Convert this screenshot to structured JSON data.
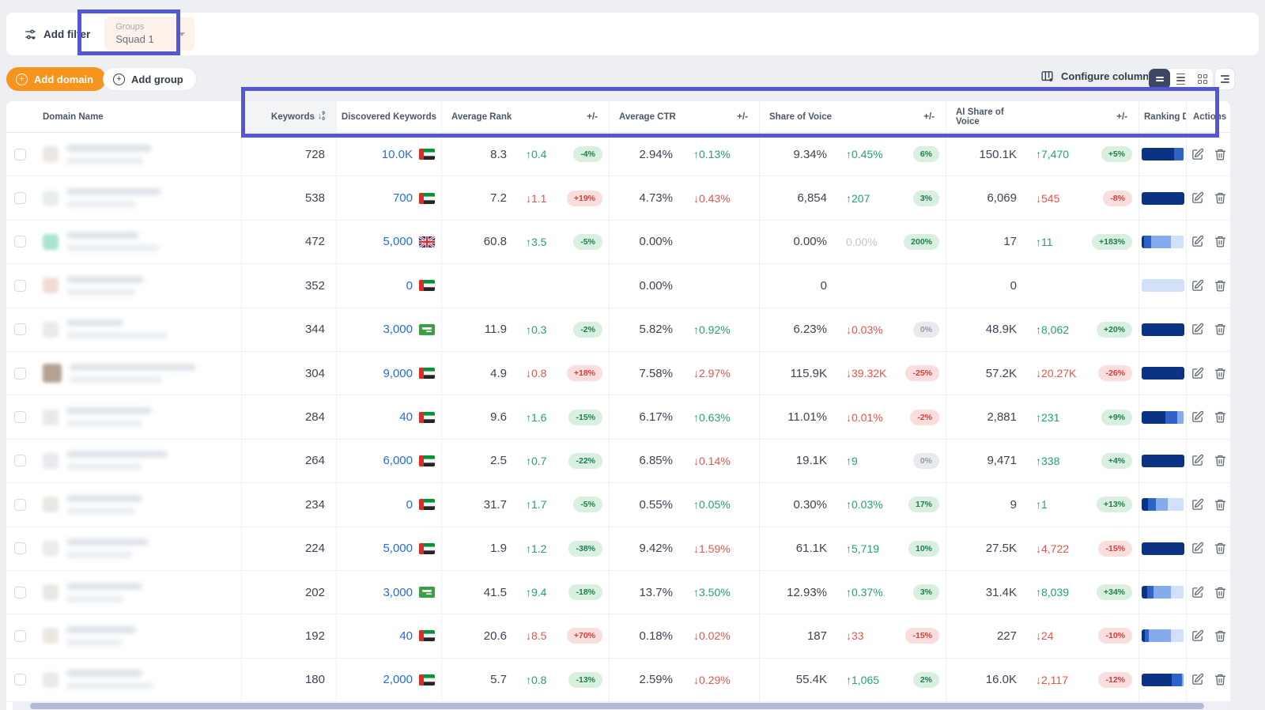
{
  "toolbar": {
    "add_filter_label": "Add filter",
    "group_chip": {
      "label": "Groups",
      "value": "Squad 1"
    }
  },
  "actions_bar": {
    "add_domain_label": "Add domain",
    "add_group_label": "Add group",
    "configure_columns_label": "Configure columns"
  },
  "icons": {
    "filter": "filter-sliders-icon",
    "plus": "plus-circle-icon",
    "configure": "table-gear-icon",
    "view_selected": "rows-compact-icon",
    "view_list": "rows-list-icon",
    "view_grid": "grid-icon",
    "view_tree": "tree-list-icon",
    "sort": "sort-descending-numeric-icon",
    "chevron": "chevron-down-icon",
    "edit": "edit-pencil-icon",
    "delete": "trash-icon"
  },
  "colors": {
    "accent_orange": "#f7941e",
    "annotation_purple": "#5457d5",
    "link_blue": "#2b6cd4",
    "positive_green": "#25a269",
    "negative_red": "#e4544e",
    "bar_navy": "#0c3383",
    "bar_medium": "#2f63c9",
    "bar_light": "#86abec",
    "bar_lighter": "#d3e0fa"
  },
  "table": {
    "columns": {
      "domain": "Domain Name",
      "keywords": "Keywords",
      "discovered": "Discovered Keywords",
      "avg_rank": "Average Rank",
      "pm": "+/-",
      "avg_ctr": "Average CTR",
      "sov": "Share of Voice",
      "ai_sov": "AI Share of Voice",
      "ranking_dist": "Ranking Dis",
      "actions": "Actions"
    },
    "rows": [
      {
        "kw": "728",
        "disc": "10.0K",
        "flag": "ae",
        "rank": "8.3",
        "rank_chg": {
          "dir": "up",
          "val": "0.4",
          "tone": "g"
        },
        "rank_badge": {
          "text": "-4%",
          "tone": "g"
        },
        "ctr": "2.94%",
        "ctr_chg": {
          "dir": "up",
          "val": "0.13%",
          "tone": "g"
        },
        "sov": "9.34%",
        "sov_chg": {
          "dir": "up",
          "val": "0.45%",
          "tone": "g"
        },
        "sov_badge": {
          "text": "6%",
          "tone": "g"
        },
        "ai": "150.1K",
        "ai_chg": {
          "dir": "up",
          "val": "7,470",
          "tone": "g"
        },
        "ai_badge": {
          "text": "+5%",
          "tone": "g"
        },
        "bar": [
          [
            "navy",
            76
          ],
          [
            "med",
            24
          ]
        ],
        "blur": [
          108,
          98
        ],
        "fav": "#ece7e2",
        "fav_size": 20
      },
      {
        "kw": "538",
        "disc": "700",
        "flag": "ae",
        "rank": "7.2",
        "rank_chg": {
          "dir": "down",
          "val": "1.1",
          "tone": "r"
        },
        "rank_badge": {
          "text": "+19%",
          "tone": "r"
        },
        "ctr": "4.73%",
        "ctr_chg": {
          "dir": "down",
          "val": "0.43%",
          "tone": "r"
        },
        "sov": "6,854",
        "sov_chg": {
          "dir": "up",
          "val": "207",
          "tone": "g"
        },
        "sov_badge": {
          "text": "3%",
          "tone": "g"
        },
        "ai": "6,069",
        "ai_chg": {
          "dir": "down",
          "val": "545",
          "tone": "r"
        },
        "ai_badge": {
          "text": "-8%",
          "tone": "r"
        },
        "bar": [
          [
            "navy",
            100
          ]
        ],
        "blur": [
          120,
          88
        ],
        "fav": "#e9edef",
        "fav_size": 20
      },
      {
        "kw": "472",
        "disc": "5,000",
        "flag": "gb",
        "rank": "60.8",
        "rank_chg": {
          "dir": "up",
          "val": "3.5",
          "tone": "g"
        },
        "rank_badge": {
          "text": "-5%",
          "tone": "g"
        },
        "ctr": "0.00%",
        "ctr_chg": null,
        "sov": "0.00%",
        "sov_chg": {
          "dir": "none",
          "val": "0.00%",
          "tone": "m"
        },
        "sov_badge": {
          "text": "200%",
          "tone": "g"
        },
        "ai": "17",
        "ai_chg": {
          "dir": "up",
          "val": "11",
          "tone": "g"
        },
        "ai_badge": {
          "text": "+183%",
          "tone": "g"
        },
        "bar": [
          [
            "navy",
            7
          ],
          [
            "med",
            16
          ],
          [
            "light",
            46
          ],
          [
            "lighter",
            31
          ]
        ],
        "blur": [
          92,
          118
        ],
        "fav": "#a9e4cf",
        "fav_size": 20
      },
      {
        "kw": "352",
        "disc": "0",
        "flag": "ae",
        "rank": "",
        "rank_chg": null,
        "rank_badge": null,
        "ctr": "0.00%",
        "ctr_chg": null,
        "sov": "0",
        "sov_chg": null,
        "sov_badge": null,
        "ai": "0",
        "ai_chg": null,
        "ai_badge": null,
        "bar": [
          [
            "lighter",
            100
          ]
        ],
        "blur": [
          98,
          88
        ],
        "fav": "#f0dcd6",
        "fav_size": 20
      },
      {
        "kw": "344",
        "disc": "3,000",
        "flag": "sa",
        "rank": "11.9",
        "rank_chg": {
          "dir": "up",
          "val": "0.3",
          "tone": "g"
        },
        "rank_badge": {
          "text": "-2%",
          "tone": "g"
        },
        "ctr": "5.82%",
        "ctr_chg": {
          "dir": "up",
          "val": "0.92%",
          "tone": "g"
        },
        "sov": "6.23%",
        "sov_chg": {
          "dir": "down",
          "val": "0.03%",
          "tone": "r"
        },
        "sov_badge": {
          "text": "0%",
          "tone": "m"
        },
        "ai": "48.9K",
        "ai_chg": {
          "dir": "up",
          "val": "8,062",
          "tone": "g"
        },
        "ai_badge": {
          "text": "+20%",
          "tone": "g"
        },
        "bar": [
          [
            "navy",
            100
          ]
        ],
        "blur": [
          72,
          128
        ],
        "fav": "#eceae6",
        "fav_size": 20
      },
      {
        "kw": "304",
        "disc": "9,000",
        "flag": "ae",
        "rank": "4.9",
        "rank_chg": {
          "dir": "down",
          "val": "0.8",
          "tone": "r"
        },
        "rank_badge": {
          "text": "+18%",
          "tone": "r"
        },
        "ctr": "7.58%",
        "ctr_chg": {
          "dir": "down",
          "val": "2.97%",
          "tone": "r"
        },
        "sov": "115.9K",
        "sov_chg": {
          "dir": "down",
          "val": "39.32K",
          "tone": "r"
        },
        "sov_badge": {
          "text": "-25%",
          "tone": "r"
        },
        "ai": "57.2K",
        "ai_chg": {
          "dir": "down",
          "val": "20.27K",
          "tone": "r"
        },
        "ai_badge": {
          "text": "-26%",
          "tone": "r"
        },
        "bar": [
          [
            "navy",
            100
          ]
        ],
        "blur": [
          160,
          118
        ],
        "fav": "#b3a294",
        "fav_size": 24
      },
      {
        "kw": "284",
        "disc": "40",
        "flag": "ae",
        "rank": "9.6",
        "rank_chg": {
          "dir": "up",
          "val": "1.6",
          "tone": "g"
        },
        "rank_badge": {
          "text": "-15%",
          "tone": "g"
        },
        "ctr": "6.17%",
        "ctr_chg": {
          "dir": "up",
          "val": "0.63%",
          "tone": "g"
        },
        "sov": "11.01%",
        "sov_chg": {
          "dir": "down",
          "val": "0.01%",
          "tone": "r"
        },
        "sov_badge": {
          "text": "-2%",
          "tone": "r"
        },
        "ai": "2,881",
        "ai_chg": {
          "dir": "up",
          "val": "231",
          "tone": "g"
        },
        "ai_badge": {
          "text": "+9%",
          "tone": "g"
        },
        "bar": [
          [
            "navy",
            56
          ],
          [
            "med",
            29
          ],
          [
            "light",
            15
          ]
        ],
        "blur": [
          108,
          96
        ],
        "fav": "#e9e9ec",
        "fav_size": 20
      },
      {
        "kw": "264",
        "disc": "6,000",
        "flag": "ae",
        "rank": "2.5",
        "rank_chg": {
          "dir": "up",
          "val": "0.7",
          "tone": "g"
        },
        "rank_badge": {
          "text": "-22%",
          "tone": "g"
        },
        "ctr": "6.85%",
        "ctr_chg": {
          "dir": "down",
          "val": "0.14%",
          "tone": "r"
        },
        "sov": "19.1K",
        "sov_chg": {
          "dir": "up",
          "val": "9",
          "tone": "g"
        },
        "sov_badge": {
          "text": "0%",
          "tone": "m"
        },
        "ai": "9,471",
        "ai_chg": {
          "dir": "up",
          "val": "338",
          "tone": "g"
        },
        "ai_badge": {
          "text": "+4%",
          "tone": "g"
        },
        "bar": [
          [
            "navy",
            100
          ]
        ],
        "blur": [
          128,
          96
        ],
        "fav": "#e8eaee",
        "fav_size": 20
      },
      {
        "kw": "234",
        "disc": "0",
        "flag": "ae",
        "rank": "31.7",
        "rank_chg": {
          "dir": "up",
          "val": "1.7",
          "tone": "g"
        },
        "rank_badge": {
          "text": "-5%",
          "tone": "g"
        },
        "ctr": "0.55%",
        "ctr_chg": {
          "dir": "up",
          "val": "0.05%",
          "tone": "g"
        },
        "sov": "0.30%",
        "sov_chg": {
          "dir": "up",
          "val": "0.03%",
          "tone": "g"
        },
        "sov_badge": {
          "text": "17%",
          "tone": "g"
        },
        "ai": "9",
        "ai_chg": {
          "dir": "up",
          "val": "1",
          "tone": "g"
        },
        "ai_badge": {
          "text": "+13%",
          "tone": "g"
        },
        "bar": [
          [
            "navy",
            16
          ],
          [
            "med",
            19
          ],
          [
            "light",
            28
          ],
          [
            "lighter",
            37
          ]
        ],
        "blur": [
          96,
          88
        ],
        "fav": "#ebe7e3",
        "fav_size": 20
      },
      {
        "kw": "224",
        "disc": "5,000",
        "flag": "ae",
        "rank": "1.9",
        "rank_chg": {
          "dir": "up",
          "val": "1.2",
          "tone": "g"
        },
        "rank_badge": {
          "text": "-38%",
          "tone": "g"
        },
        "ctr": "9.42%",
        "ctr_chg": {
          "dir": "down",
          "val": "1.59%",
          "tone": "r"
        },
        "sov": "61.1K",
        "sov_chg": {
          "dir": "up",
          "val": "5,719",
          "tone": "g"
        },
        "sov_badge": {
          "text": "10%",
          "tone": "g"
        },
        "ai": "27.5K",
        "ai_chg": {
          "dir": "down",
          "val": "4,722",
          "tone": "r"
        },
        "ai_badge": {
          "text": "-15%",
          "tone": "r"
        },
        "bar": [
          [
            "navy",
            100
          ]
        ],
        "blur": [
          104,
          84
        ],
        "fav": "#e9ebee",
        "fav_size": 20
      },
      {
        "kw": "202",
        "disc": "3,000",
        "flag": "sa",
        "rank": "41.5",
        "rank_chg": {
          "dir": "up",
          "val": "9.4",
          "tone": "g"
        },
        "rank_badge": {
          "text": "-18%",
          "tone": "g"
        },
        "ctr": "13.7%",
        "ctr_chg": {
          "dir": "up",
          "val": "3.50%",
          "tone": "g"
        },
        "sov": "12.93%",
        "sov_chg": {
          "dir": "up",
          "val": "0.37%",
          "tone": "g"
        },
        "sov_badge": {
          "text": "3%",
          "tone": "g"
        },
        "ai": "31.4K",
        "ai_chg": {
          "dir": "up",
          "val": "8,039",
          "tone": "g"
        },
        "ai_badge": {
          "text": "+34%",
          "tone": "g"
        },
        "bar": [
          [
            "navy",
            13
          ],
          [
            "med",
            15
          ],
          [
            "light",
            42
          ],
          [
            "lighter",
            30
          ]
        ],
        "blur": [
          96,
          72
        ],
        "fav": "#eae8e4",
        "fav_size": 20
      },
      {
        "kw": "192",
        "disc": "40",
        "flag": "ae",
        "rank": "20.6",
        "rank_chg": {
          "dir": "down",
          "val": "8.5",
          "tone": "r"
        },
        "rank_badge": {
          "text": "+70%",
          "tone": "r"
        },
        "ctr": "0.18%",
        "ctr_chg": {
          "dir": "down",
          "val": "0.02%",
          "tone": "r"
        },
        "sov": "187",
        "sov_chg": {
          "dir": "down",
          "val": "33",
          "tone": "r"
        },
        "sov_badge": {
          "text": "-15%",
          "tone": "r"
        },
        "ai": "227",
        "ai_chg": {
          "dir": "down",
          "val": "24",
          "tone": "r"
        },
        "ai_badge": {
          "text": "-10%",
          "tone": "r"
        },
        "bar": [
          [
            "navy",
            9
          ],
          [
            "med",
            9
          ],
          [
            "light",
            52
          ],
          [
            "lighter",
            30
          ]
        ],
        "blur": [
          88,
          70
        ],
        "fav": "#ece6e1",
        "fav_size": 20
      },
      {
        "kw": "180",
        "disc": "2,000",
        "flag": "ae",
        "rank": "5.7",
        "rank_chg": {
          "dir": "up",
          "val": "0.8",
          "tone": "g"
        },
        "rank_badge": {
          "text": "-13%",
          "tone": "g"
        },
        "ctr": "2.59%",
        "ctr_chg": {
          "dir": "down",
          "val": "0.29%",
          "tone": "r"
        },
        "sov": "55.4K",
        "sov_chg": {
          "dir": "up",
          "val": "1,065",
          "tone": "g"
        },
        "sov_badge": {
          "text": "2%",
          "tone": "g"
        },
        "ai": "16.0K",
        "ai_chg": {
          "dir": "down",
          "val": "2,117",
          "tone": "r"
        },
        "ai_badge": {
          "text": "-12%",
          "tone": "r"
        },
        "bar": [
          [
            "navy",
            72
          ],
          [
            "med",
            23
          ],
          [
            "light",
            5
          ]
        ],
        "blur": [
          96,
          110
        ],
        "fav": "#e9eaed",
        "fav_size": 20
      }
    ]
  }
}
